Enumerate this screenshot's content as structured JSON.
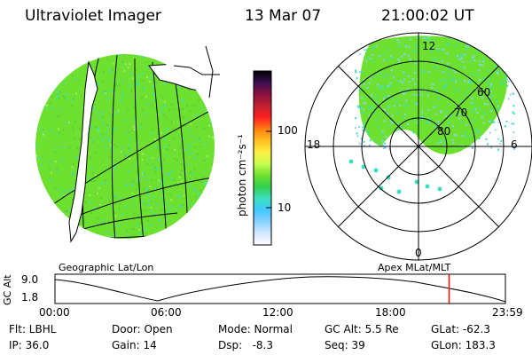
{
  "header": {
    "title": "Ultraviolet Imager",
    "date": "13 Mar 07",
    "time": "21:00:02 UT"
  },
  "left_panel": {
    "caption": "Geographic Lat/Lon"
  },
  "right_panel": {
    "caption": "Apex MLat/MLT",
    "mlt_labels": {
      "top": "12",
      "left": "18",
      "right": "6",
      "bottom": "0"
    },
    "lat_labels": [
      "60",
      "70",
      "80"
    ]
  },
  "colorbar": {
    "unit_label": "photon cm⁻²s⁻¹",
    "ticks": [
      "100",
      "10"
    ],
    "colors": [
      "#000000",
      "#3a1050",
      "#8a1040",
      "#c02030",
      "#ff2020",
      "#ff7d10",
      "#ffc020",
      "#ffee40",
      "#c8ff50",
      "#6ee02f",
      "#32d050",
      "#3ce0c0",
      "#40c8ff",
      "#8ad2ff",
      "#d6e8ff",
      "#ffffff"
    ]
  },
  "altitude_plot": {
    "y_label": "GC Alt",
    "y_ticks": [
      "9.0",
      "1.8"
    ],
    "x_ticks": [
      "00:00",
      "06:00",
      "12:00",
      "18:00",
      "23:59"
    ],
    "current_time_fraction": 0.875,
    "marker_color": "#ff0000"
  },
  "info": {
    "row1": {
      "filter": "Flt: LBHL",
      "door": "Door: Open",
      "mode": "Mode: Normal",
      "gc_alt": "GC Alt: 5.5 Re",
      "glat": "GLat: -62.3"
    },
    "row2": {
      "ip": "IP: 36.0",
      "gain": "Gain: 14",
      "dsp": "Dsp:   -8.3",
      "seq": "Seq: 39",
      "glon": "GLon: 183.3"
    }
  },
  "colors": {
    "aurora_green": "#6ee02f",
    "aurora_cyan": "#3ce0c0"
  }
}
